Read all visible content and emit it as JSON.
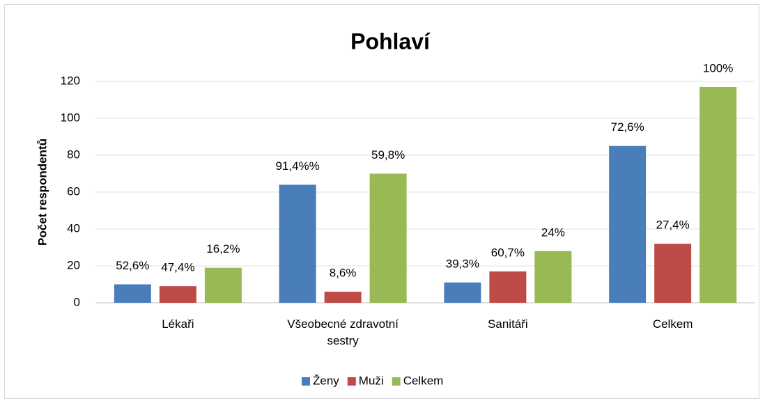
{
  "chart_data": {
    "type": "bar",
    "title": "Pohlaví",
    "y_label": "Počet respondentů",
    "categories": [
      "Lékaři",
      "Všeobecné zdravotní sestry",
      "Sanitáři",
      "Celkem"
    ],
    "series": [
      {
        "name": "Ženy",
        "color": "#4a7ebb",
        "values": [
          10,
          64,
          11,
          85
        ],
        "data_labels": [
          "52,6%",
          "91,4%%",
          "39,3%",
          "72,6%"
        ]
      },
      {
        "name": "Muži",
        "color": "#be4b48",
        "values": [
          9,
          6,
          17,
          32
        ],
        "data_labels": [
          "47,4%",
          "8,6%",
          "60,7%",
          "27,4%"
        ]
      },
      {
        "name": "Celkem",
        "color": "#98b954",
        "values": [
          19,
          70,
          28,
          117
        ],
        "data_labels": [
          "16,2%",
          "59,8%",
          "24%",
          "100%"
        ]
      }
    ],
    "ylim": [
      0,
      120
    ],
    "yticks": [
      0,
      20,
      40,
      60,
      80,
      100,
      120
    ],
    "grid": true,
    "legend": "bottom"
  }
}
